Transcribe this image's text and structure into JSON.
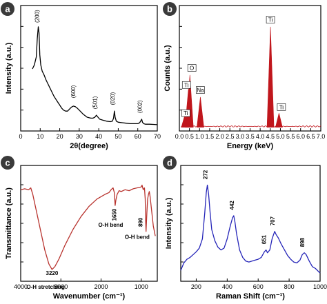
{
  "chart_data": [
    {
      "id": "a",
      "type": "line",
      "panel_label": "a",
      "xlabel": "2θ(degree)",
      "ylabel": "Intensity (a.u.)",
      "xlim": [
        0,
        70
      ],
      "xticks": [
        0,
        10,
        20,
        30,
        40,
        50,
        60,
        70
      ],
      "color": "#000000",
      "series": [
        {
          "x": [
            6,
            7,
            8,
            8.5,
            9,
            9.4,
            9.8,
            10.3,
            11,
            12,
            13,
            14,
            15,
            16,
            17,
            18,
            19,
            20,
            21,
            22,
            23,
            24,
            25,
            26,
            27,
            28,
            29,
            30,
            31,
            32,
            33,
            34,
            35,
            36,
            37,
            38,
            38.8,
            39.6,
            40.5,
            42,
            44,
            46,
            47,
            47.6,
            48,
            48.4,
            49,
            50,
            52,
            54,
            56,
            58,
            60,
            61,
            61.6,
            62,
            62.4,
            63,
            64,
            66,
            68,
            70
          ],
          "y": [
            0.58,
            0.62,
            0.7,
            0.88,
            1.0,
            0.94,
            0.72,
            0.62,
            0.56,
            0.52,
            0.47,
            0.43,
            0.39,
            0.35,
            0.31,
            0.28,
            0.25,
            0.22,
            0.19,
            0.17,
            0.16,
            0.16,
            0.18,
            0.2,
            0.21,
            0.205,
            0.19,
            0.17,
            0.15,
            0.13,
            0.115,
            0.1,
            0.095,
            0.09,
            0.09,
            0.1,
            0.12,
            0.1,
            0.08,
            0.07,
            0.06,
            0.055,
            0.06,
            0.09,
            0.16,
            0.1,
            0.06,
            0.05,
            0.045,
            0.04,
            0.035,
            0.035,
            0.035,
            0.045,
            0.065,
            0.08,
            0.05,
            0.035,
            0.03,
            0.03,
            0.028,
            0.025
          ]
        }
      ],
      "annotations": [
        {
          "label": "(200)",
          "x": 9.3,
          "y": 1.02
        },
        {
          "label": "(600)",
          "x": 28,
          "y": 0.27
        },
        {
          "label": "(501)",
          "x": 39,
          "y": 0.16
        },
        {
          "label": "(020)",
          "x": 48,
          "y": 0.2
        },
        {
          "label": "(002)",
          "x": 62,
          "y": 0.12
        }
      ]
    },
    {
      "id": "b",
      "type": "bar",
      "panel_label": "b",
      "xlabel": "Energy (keV)",
      "ylabel": "Counts (a.u.)",
      "xlim": [
        0,
        7.0
      ],
      "xticks": [
        0.0,
        0.5,
        1.0,
        1.5,
        2.0,
        2.5,
        3.0,
        3.5,
        4.0,
        4.5,
        5.0,
        5.5,
        6.0,
        6.5,
        7.0
      ],
      "color": "#c0161c",
      "peaks": [
        {
          "x": 0.27,
          "y": 0.12
        },
        {
          "x": 0.45,
          "y": 0.38
        },
        {
          "x": 0.52,
          "y": 0.52
        },
        {
          "x": 1.04,
          "y": 0.3
        },
        {
          "x": 4.51,
          "y": 1.0
        },
        {
          "x": 4.93,
          "y": 0.14
        }
      ],
      "annotations": [
        {
          "label": "Ti",
          "x": 0.32,
          "y": 0.12
        },
        {
          "label": "Ti",
          "x": 0.35,
          "y": 0.4
        },
        {
          "label": "O",
          "x": 0.62,
          "y": 0.57
        },
        {
          "label": "Na",
          "x": 1.04,
          "y": 0.35
        },
        {
          "label": "Ti",
          "x": 4.51,
          "y": 1.05
        },
        {
          "label": "Ti",
          "x": 5.05,
          "y": 0.18
        }
      ]
    },
    {
      "id": "c",
      "type": "line",
      "panel_label": "c",
      "xlabel": "Wavenumber (cm⁻¹)",
      "ylabel": "Transmittance (a.u.)",
      "xlim": [
        4000,
        600
      ],
      "x_reversed": true,
      "xticks": [
        4000,
        3000,
        2000,
        1000
      ],
      "color": "#b8332e",
      "series": [
        {
          "x": [
            4000,
            3900,
            3800,
            3750,
            3700,
            3650,
            3600,
            3500,
            3400,
            3300,
            3220,
            3150,
            3050,
            2900,
            2700,
            2500,
            2300,
            2100,
            1900,
            1800,
            1750,
            1700,
            1670,
            1650,
            1630,
            1600,
            1550,
            1500,
            1400,
            1300,
            1200,
            1100,
            1000,
            980,
            950,
            920,
            900,
            890,
            880,
            860,
            840,
            820,
            800,
            780,
            760,
            700,
            650
          ],
          "y": [
            0.95,
            0.96,
            0.95,
            0.97,
            0.9,
            0.8,
            0.7,
            0.5,
            0.3,
            0.15,
            0.09,
            0.12,
            0.2,
            0.35,
            0.52,
            0.66,
            0.77,
            0.85,
            0.9,
            0.92,
            0.95,
            0.97,
            0.92,
            0.78,
            0.84,
            0.9,
            0.94,
            0.93,
            0.95,
            0.94,
            0.96,
            0.97,
            0.98,
            1.0,
            0.95,
            0.97,
            0.85,
            0.62,
            0.5,
            0.7,
            0.85,
            0.9,
            0.93,
            0.88,
            0.8,
            0.56,
            0.45
          ]
        }
      ],
      "annotations": [
        {
          "label": "3220",
          "x": 3220,
          "y": 0.03
        },
        {
          "label": "O-H stretching",
          "x": 3380,
          "y": -0.12
        },
        {
          "label": "1650",
          "x": 1620,
          "y": 0.68
        },
        {
          "label": "O-H bend",
          "x": 1760,
          "y": 0.55
        },
        {
          "label": "890",
          "x": 965,
          "y": 0.6
        },
        {
          "label": "O-H bend",
          "x": 1100,
          "y": 0.42
        }
      ]
    },
    {
      "id": "d",
      "type": "line",
      "panel_label": "d",
      "xlabel": "Raman Shift (cm⁻¹)",
      "ylabel": "Intensity (a.u.)",
      "xlim": [
        100,
        1000
      ],
      "xticks": [
        200,
        400,
        600,
        800,
        1000
      ],
      "color": "#2424b8",
      "series": [
        {
          "x": [
            100,
            120,
            140,
            160,
            180,
            200,
            220,
            240,
            255,
            265,
            272,
            280,
            290,
            300,
            320,
            340,
            360,
            380,
            400,
            420,
            435,
            442,
            450,
            460,
            480,
            500,
            520,
            540,
            560,
            580,
            600,
            620,
            640,
            651,
            660,
            675,
            690,
            700,
            707,
            715,
            730,
            750,
            770,
            790,
            810,
            830,
            850,
            870,
            885,
            898,
            910,
            930,
            950,
            970,
            1000
          ],
          "y": [
            0.08,
            0.16,
            0.2,
            0.22,
            0.25,
            0.28,
            0.32,
            0.42,
            0.7,
            0.92,
            1.0,
            0.9,
            0.7,
            0.52,
            0.4,
            0.33,
            0.3,
            0.32,
            0.42,
            0.56,
            0.65,
            0.67,
            0.6,
            0.48,
            0.3,
            0.22,
            0.18,
            0.17,
            0.18,
            0.19,
            0.2,
            0.22,
            0.28,
            0.3,
            0.27,
            0.3,
            0.42,
            0.47,
            0.5,
            0.47,
            0.43,
            0.36,
            0.3,
            0.24,
            0.2,
            0.17,
            0.16,
            0.19,
            0.25,
            0.27,
            0.25,
            0.18,
            0.12,
            0.1,
            0.05
          ]
        }
      ],
      "annotations": [
        {
          "label": "272",
          "x": 272,
          "y": 1.04
        },
        {
          "label": "442",
          "x": 442,
          "y": 0.71
        },
        {
          "label": "651",
          "x": 651,
          "y": 0.34
        },
        {
          "label": "707",
          "x": 707,
          "y": 0.54
        },
        {
          "label": "898",
          "x": 898,
          "y": 0.31
        }
      ]
    }
  ]
}
